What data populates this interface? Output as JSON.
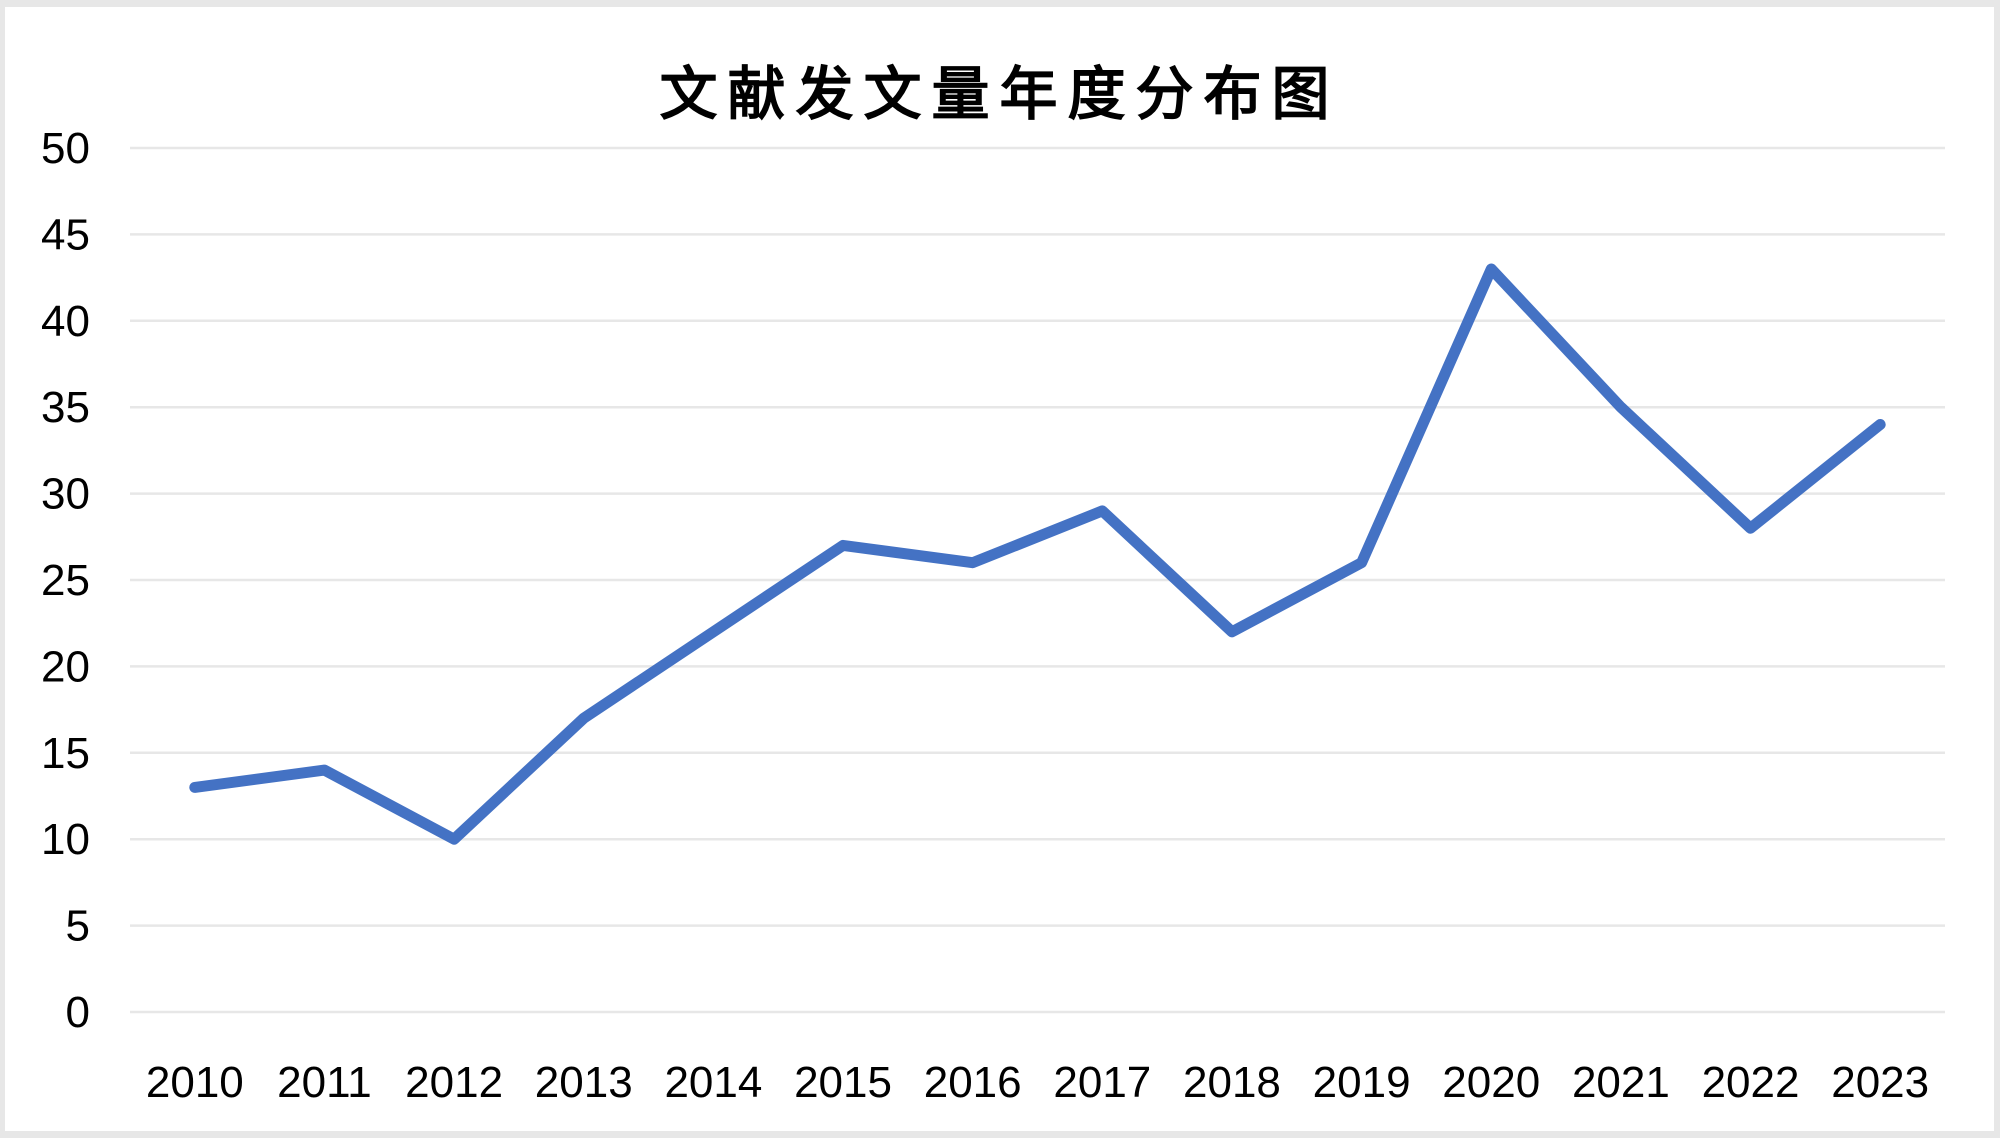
{
  "chart_data": {
    "type": "line",
    "title": "文献发文量年度分布图",
    "categories": [
      "2010",
      "2011",
      "2012",
      "2013",
      "2014",
      "2015",
      "2016",
      "2017",
      "2018",
      "2019",
      "2020",
      "2021",
      "2022",
      "2023"
    ],
    "values": [
      13,
      14,
      10,
      17,
      22,
      27,
      26,
      29,
      22,
      26,
      43,
      35,
      28,
      34
    ],
    "xlabel": "",
    "ylabel": "",
    "ylim": [
      0,
      50
    ],
    "ytick_step": 5,
    "y_ticks": [
      0,
      5,
      10,
      15,
      20,
      25,
      30,
      35,
      40,
      45,
      50
    ],
    "grid": true,
    "legend": "none",
    "markers": "none",
    "line_color": "#4472C4",
    "gridline_color": "#E7E7E7",
    "text_color": "#000000",
    "background_color": "#FFFFFF",
    "frame_color": "#E7E7E7"
  }
}
